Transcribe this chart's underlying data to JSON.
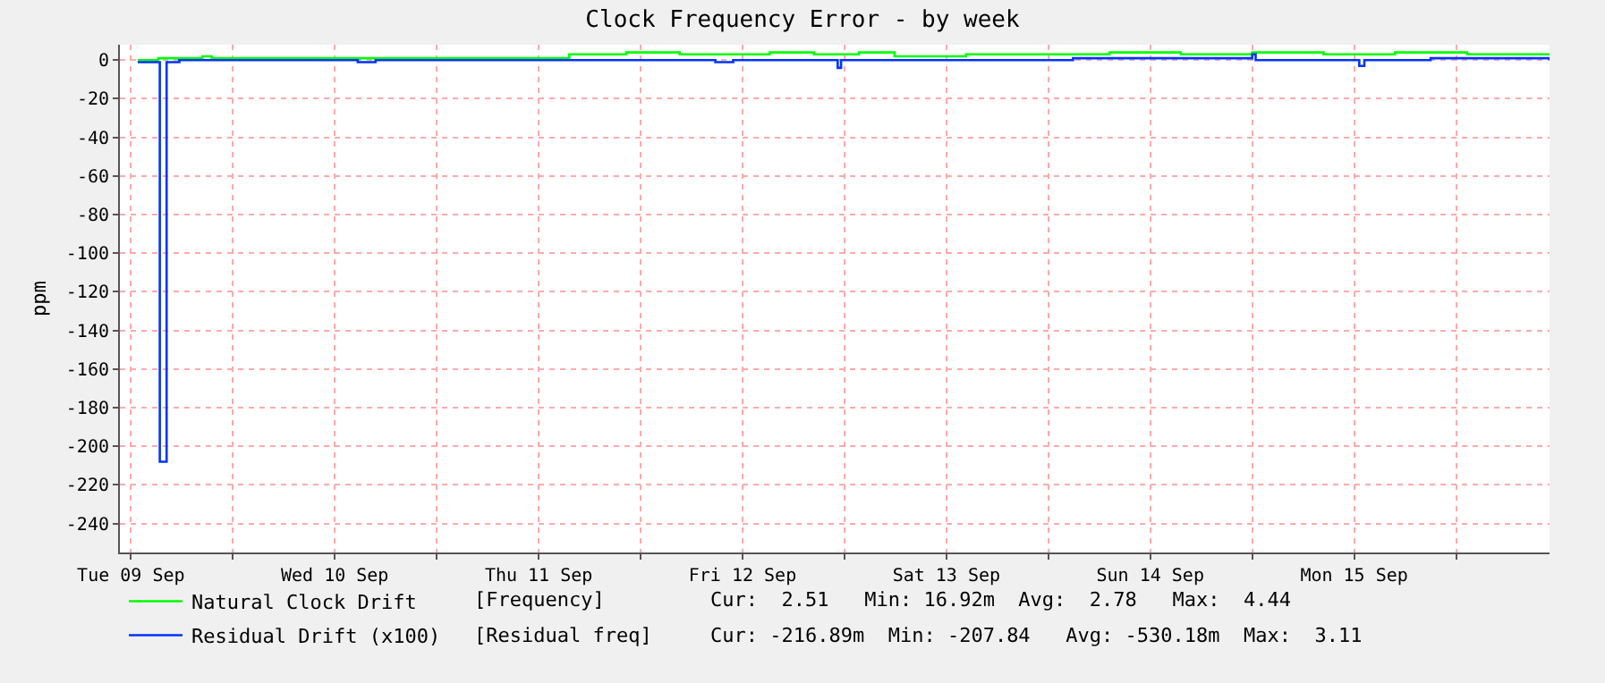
{
  "chart_data": {
    "type": "step",
    "title": "Clock Frequency Error - by week",
    "ylabel": "ppm",
    "xlim": [
      "--09-09T10:42",
      "--09-16T11:00"
    ],
    "xticks": [
      {
        "value": "--09-09T12:00",
        "label": "Tue 09 Sep"
      },
      {
        "value": "--09-10T00:00",
        "label": null
      },
      {
        "value": "--09-10T12:00",
        "label": "Wed 10 Sep"
      },
      {
        "value": "--09-11T00:00",
        "label": null
      },
      {
        "value": "--09-11T12:00",
        "label": "Thu 11 Sep"
      },
      {
        "value": "--09-12T00:00",
        "label": null
      },
      {
        "value": "--09-12T12:00",
        "label": "Fri 12 Sep"
      },
      {
        "value": "--09-13T00:00",
        "label": null
      },
      {
        "value": "--09-13T12:00",
        "label": "Sat 13 Sep"
      },
      {
        "value": "--09-14T00:00",
        "label": null
      },
      {
        "value": "--09-14T12:00",
        "label": "Sun 14 Sep"
      },
      {
        "value": "--09-15T00:00",
        "label": null
      },
      {
        "value": "--09-15T12:00",
        "label": "Mon 15 Sep"
      },
      {
        "value": "--09-16T00:00",
        "label": null
      }
    ],
    "ylim": [
      -255,
      8
    ],
    "yticks": [
      0,
      -20,
      -40,
      -60,
      -80,
      -100,
      -120,
      -140,
      -160,
      -180,
      -200,
      -220,
      -240
    ],
    "grid": true,
    "legend": "bottom",
    "marker": "none",
    "line_style": "solid",
    "series": [
      {
        "name": "Natural Clock Drift",
        "color": "#00ff00",
        "x": [
          "--09-09T12:48",
          "--09-09T15:12",
          "--09-09T20:24",
          "--09-09T21:30",
          "--09-11T15:36",
          "--09-11T22:18",
          "--09-12T04:36",
          "--09-12T15:12",
          "--09-12T20:24",
          "--09-13T01:42",
          "--09-13T05:54",
          "--09-13T14:18",
          "--09-13T22:42",
          "--09-14T07:12",
          "--09-14T15:36",
          "--09-15T00:00",
          "--09-15T08:24",
          "--09-15T16:48",
          "--09-16T01:18",
          "--09-16T09:42",
          "--09-16T11:00"
        ],
        "values": [
          0,
          1,
          2,
          1,
          3,
          4,
          3,
          4,
          3,
          4,
          2,
          3,
          3,
          4,
          3,
          4,
          3,
          4,
          3,
          3,
          3
        ]
      },
      {
        "name": "Residual Drift (x100)",
        "color": "#0033ff",
        "x": [
          "--09-09T12:48",
          "--09-09T15:24",
          "--09-09T16:12",
          "--09-09T17:42",
          "--09-10T14:42",
          "--09-10T16:48",
          "--09-11T15:36",
          "--09-12T08:48",
          "--09-12T10:54",
          "--09-12T23:12",
          "--09-12T23:36",
          "--09-14T02:54",
          "--09-15T00:00",
          "--09-15T00:24",
          "--09-15T12:36",
          "--09-15T13:12",
          "--09-15T21:00",
          "--09-16T11:00"
        ],
        "values": [
          -1,
          -208,
          -1,
          0,
          -1,
          0,
          0,
          -1,
          0,
          -4,
          0,
          1,
          3,
          0,
          -3,
          0,
          1,
          0
        ]
      }
    ],
    "annotations": [
      "[Frequency]",
      "Cur:  2.51   Min: 16.92m  Avg:  2.78   Max:  4.44",
      "[Residual freq]",
      "Cur: -216.89m  Min: -207.84   Avg: -530.18m  Max:  3.11"
    ]
  }
}
